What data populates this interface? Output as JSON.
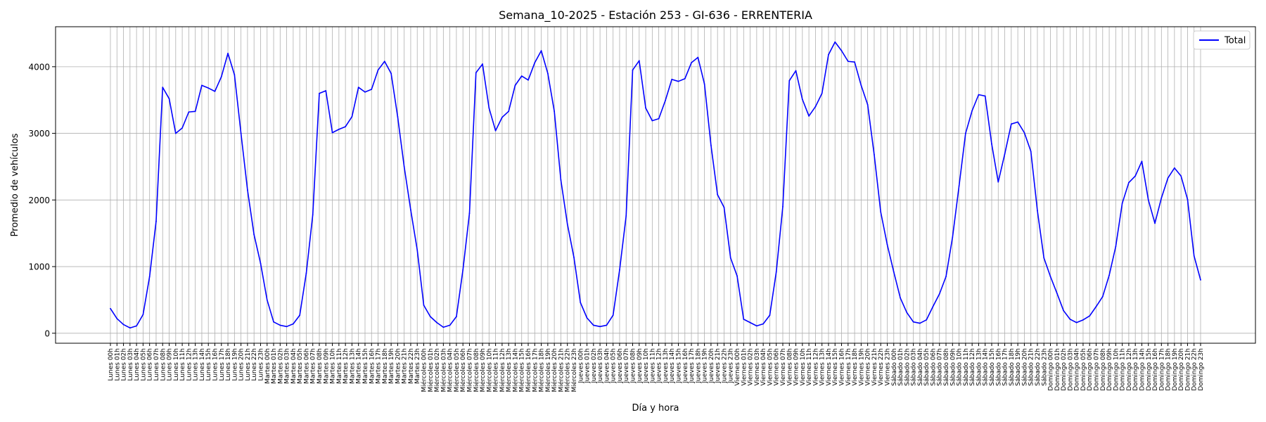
{
  "chart_data": {
    "type": "line",
    "title": "Semana_10-2025 - Estación 253 - GI-636  - ERRENTERIA",
    "xlabel": "Día y hora",
    "ylabel": "Promedio de vehículos",
    "ylim": [
      -150,
      4600
    ],
    "yticks": [
      0,
      1000,
      2000,
      3000,
      4000
    ],
    "ytick_labels": [
      "0",
      "1000",
      "2000",
      "3000",
      "4000"
    ],
    "grid": true,
    "legend_position": "top-right",
    "days": [
      "Lunes",
      "Martes",
      "Miércoles",
      "Jueves",
      "Viernes",
      "Sábado",
      "Domingo"
    ],
    "series": [
      {
        "name": "Total",
        "color": "#0000ff",
        "values": [
          370,
          220,
          130,
          80,
          110,
          280,
          850,
          1680,
          3690,
          3520,
          3000,
          3080,
          3320,
          3330,
          3720,
          3680,
          3630,
          3850,
          4200,
          3880,
          3000,
          2150,
          1480,
          1050,
          500,
          170,
          120,
          100,
          140,
          270,
          900,
          1780,
          3600,
          3640,
          3010,
          3060,
          3100,
          3250,
          3690,
          3620,
          3660,
          3950,
          4080,
          3900,
          3250,
          2500,
          1850,
          1250,
          420,
          250,
          160,
          90,
          120,
          250,
          950,
          1800,
          3910,
          4040,
          3380,
          3040,
          3240,
          3330,
          3720,
          3860,
          3800,
          4060,
          4240,
          3900,
          3330,
          2300,
          1640,
          1140,
          460,
          230,
          120,
          100,
          120,
          270,
          950,
          1760,
          3950,
          4090,
          3380,
          3190,
          3220,
          3490,
          3810,
          3780,
          3820,
          4060,
          4140,
          3740,
          2820,
          2080,
          1890,
          1130,
          860,
          210,
          160,
          110,
          140,
          270,
          920,
          1900,
          3790,
          3940,
          3510,
          3260,
          3400,
          3600,
          4180,
          4370,
          4240,
          4080,
          4070,
          3720,
          3430,
          2680,
          1820,
          1330,
          920,
          530,
          310,
          170,
          150,
          200,
          400,
          590,
          850,
          1440,
          2210,
          3000,
          3340,
          3580,
          3560,
          2840,
          2270,
          2690,
          3140,
          3170,
          3010,
          2730,
          1840,
          1130,
          850,
          600,
          340,
          210,
          160,
          200,
          260,
          400,
          550,
          870,
          1300,
          1950,
          2260,
          2360,
          2580,
          2000,
          1650,
          2030,
          2330,
          2480,
          2360,
          2010,
          1160,
          800
        ]
      }
    ]
  }
}
